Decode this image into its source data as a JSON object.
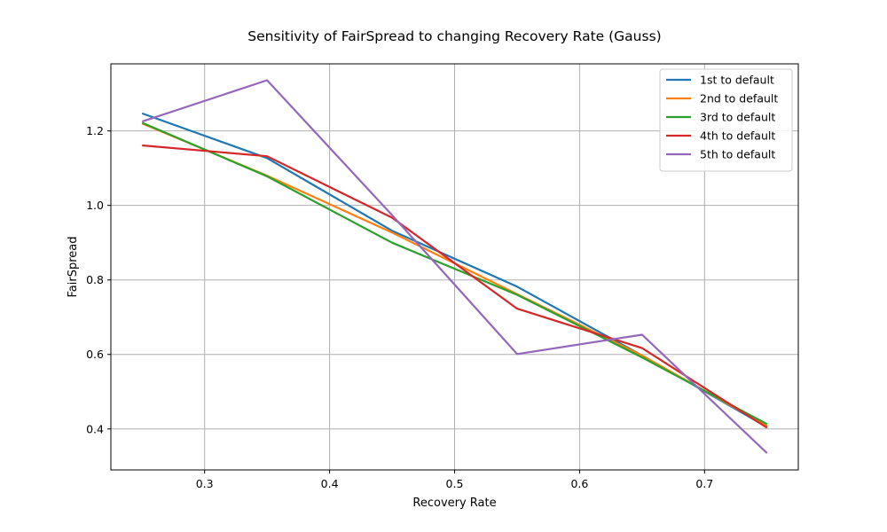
{
  "chart_data": {
    "type": "line",
    "title": "Sensitivity of FairSpread to changing Recovery Rate (Gauss)",
    "xlabel": "Recovery Rate",
    "ylabel": "FairSpread",
    "xlim": [
      0.225,
      0.775
    ],
    "ylim": [
      0.29,
      1.38
    ],
    "xticks": [
      0.3,
      0.4,
      0.5,
      0.6,
      0.7
    ],
    "xtick_labels": [
      "0.3",
      "0.4",
      "0.5",
      "0.6",
      "0.7"
    ],
    "yticks": [
      0.4,
      0.6,
      0.8,
      1.0,
      1.2
    ],
    "ytick_labels": [
      "0.4",
      "0.6",
      "0.8",
      "1.0",
      "1.2"
    ],
    "grid": true,
    "legend_position": "top-right",
    "x": [
      0.25,
      0.35,
      0.45,
      0.55,
      0.65,
      0.75
    ],
    "series": [
      {
        "name": "1st to default",
        "color": "#1f77b4",
        "values": [
          1.247,
          1.127,
          0.932,
          0.782,
          0.597,
          0.405
        ]
      },
      {
        "name": "2nd to default",
        "color": "#ff7f0e",
        "values": [
          1.22,
          1.08,
          0.927,
          0.762,
          0.597,
          0.408
        ]
      },
      {
        "name": "3rd to default",
        "color": "#2ca02c",
        "values": [
          1.222,
          1.078,
          0.9,
          0.76,
          0.592,
          0.413
        ]
      },
      {
        "name": "4th to default",
        "color": "#d62728",
        "values": [
          1.161,
          1.132,
          0.967,
          0.723,
          0.617,
          0.403
        ]
      },
      {
        "name": "5th to default",
        "color": "#9467bd",
        "values": [
          1.225,
          1.336,
          0.974,
          0.601,
          0.653,
          0.335
        ]
      }
    ]
  }
}
